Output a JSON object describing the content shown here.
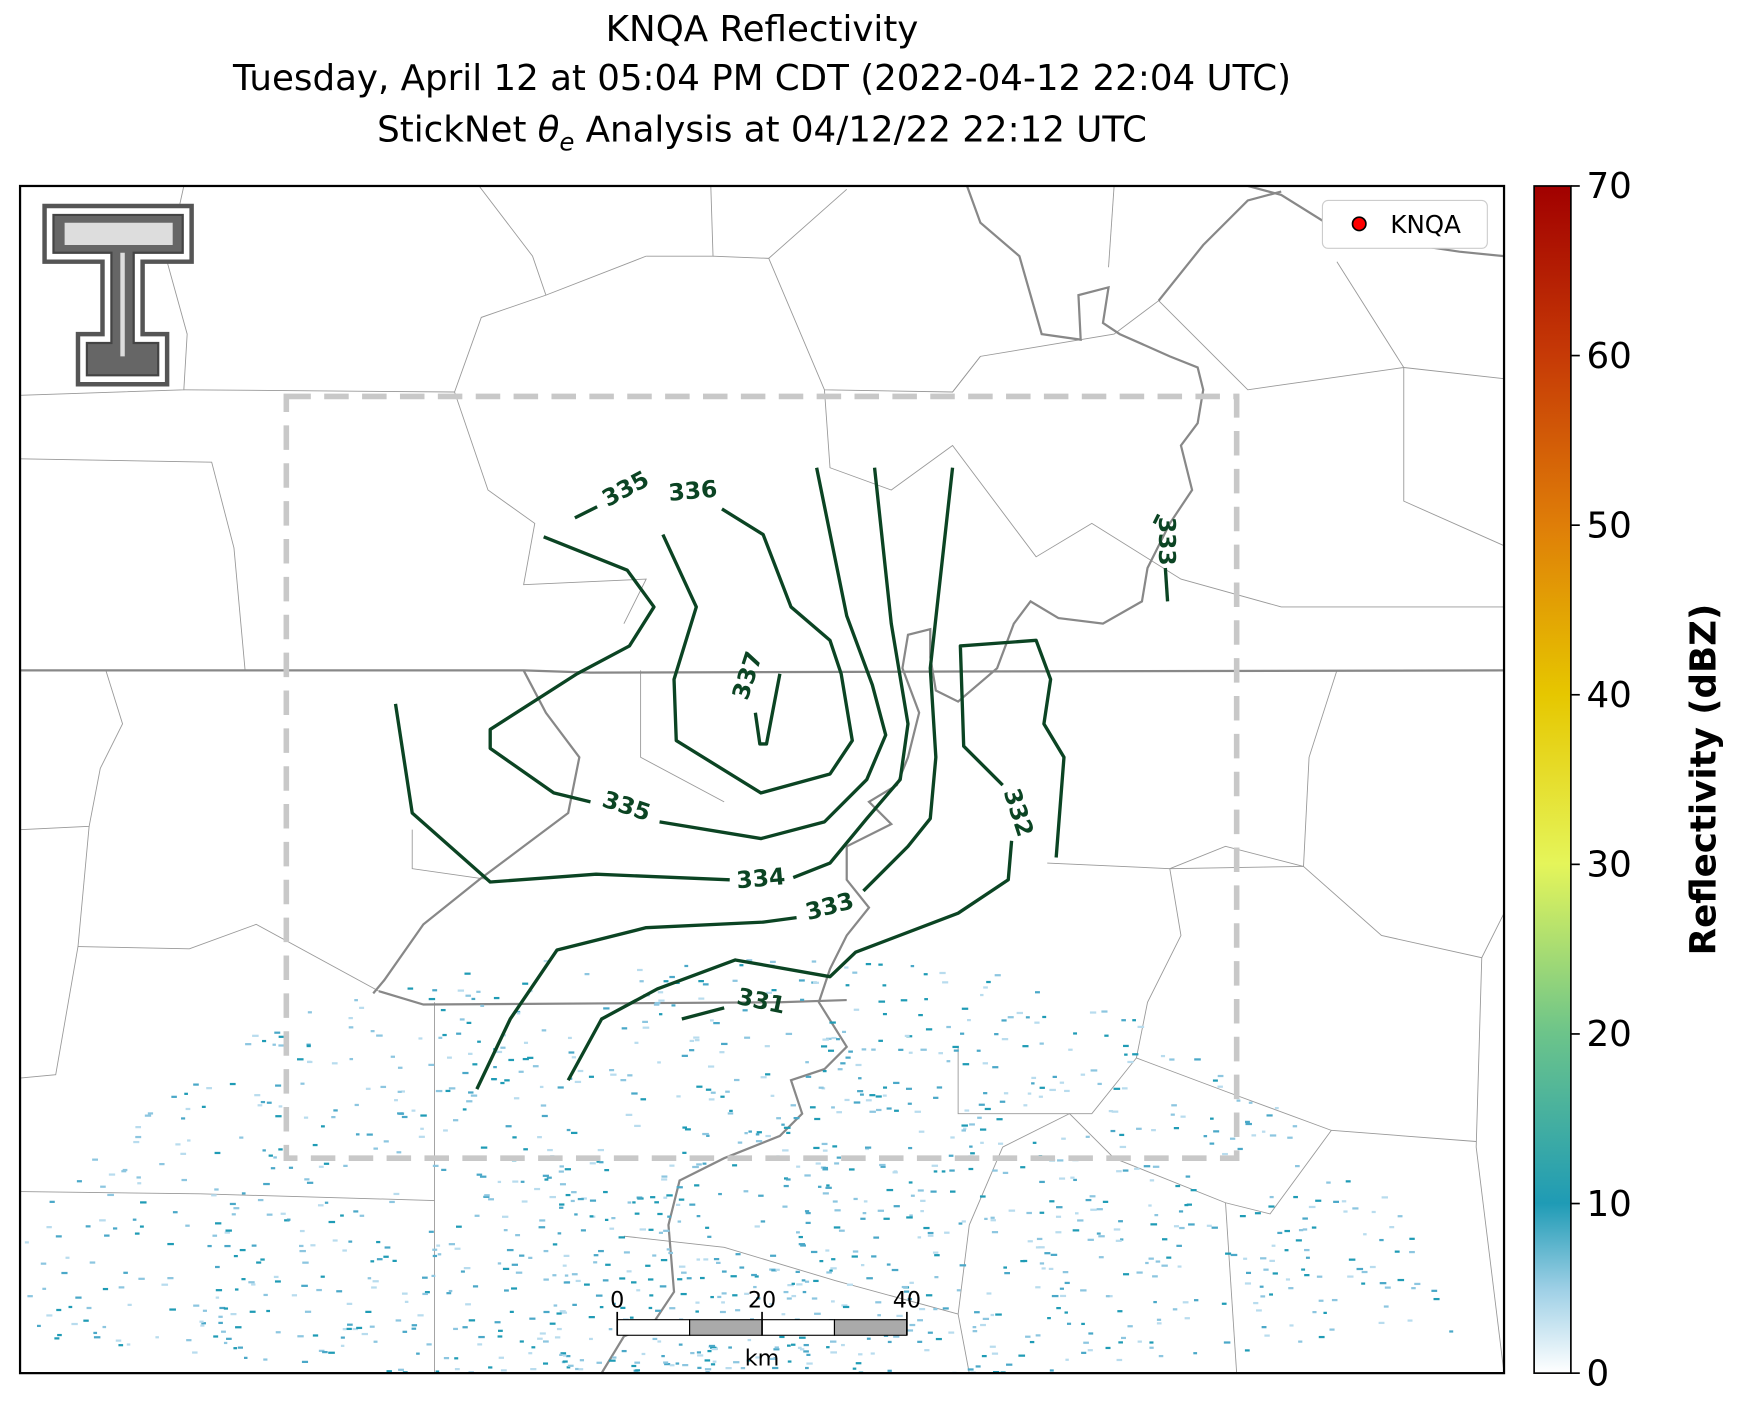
{
  "title": {
    "line1": "KNQA Reflectivity",
    "line2": "Tuesday, April 12 at 05:04 PM CDT (2022-04-12 22:04 UTC)",
    "line3_parts": [
      "StickNet",
      "θ",
      "e",
      "Analysis at 04/12/22 22:12 UTC"
    ]
  },
  "legend": {
    "label": "KNQA",
    "color": "#ff0000"
  },
  "colorbar": {
    "label": "Reflectivity (dBZ)",
    "lim": [
      0,
      70
    ],
    "ticks": [
      0,
      10,
      20,
      30,
      40,
      50,
      60,
      70
    ]
  },
  "contour_labels": [
    335,
    336,
    337,
    335,
    334,
    333,
    331,
    332,
    333
  ],
  "scale_bar": {
    "ticks": [
      0,
      20,
      40
    ],
    "unit": "km"
  }
}
